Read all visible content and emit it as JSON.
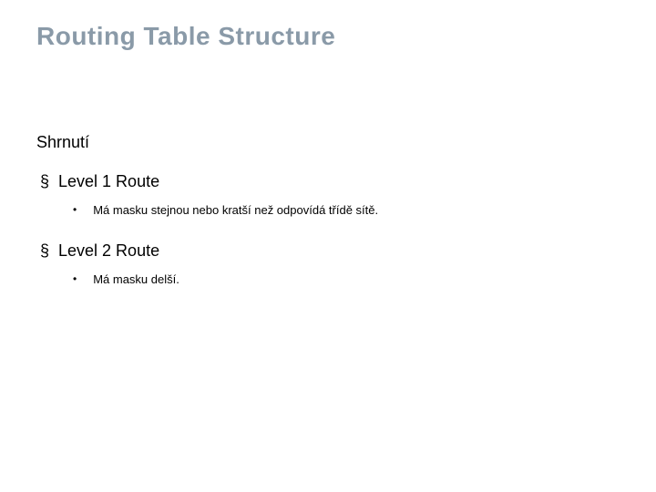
{
  "title": "Routing Table Structure",
  "subtitle": "Shrnutí",
  "items": [
    {
      "label": "Level 1 Route",
      "sub": [
        "Má masku stejnou nebo kratší než odpovídá třídě sítě."
      ]
    },
    {
      "label": "Level 2 Route",
      "sub": [
        "Má masku delší."
      ]
    }
  ],
  "style": {
    "title_color": "#8a9aa8",
    "title_fontsize": 28,
    "subtitle_fontsize": 18,
    "l1_fontsize": 18,
    "l2_fontsize": 13,
    "background": "#ffffff",
    "l1_marker": "§",
    "l2_marker": "•"
  }
}
